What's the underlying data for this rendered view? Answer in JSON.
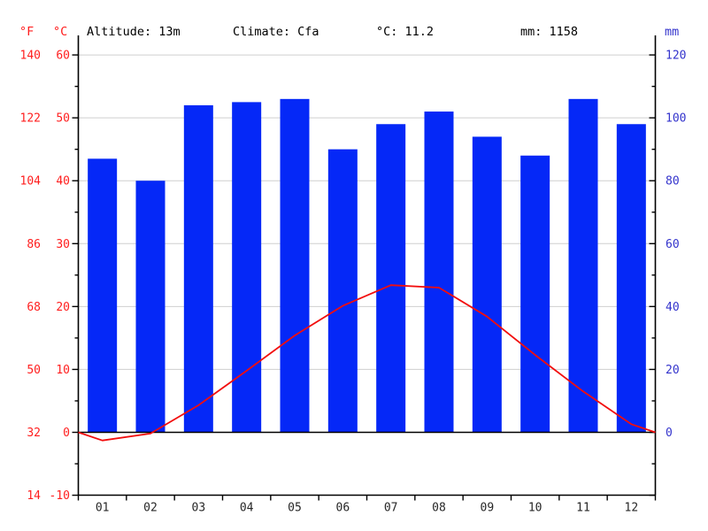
{
  "header": {
    "f_unit": "°F",
    "c_unit": "°C",
    "altitude": "Altitude: 13m",
    "climate": "Climate: Cfa",
    "mean_temp": "°C: 11.2",
    "annual_precip": "mm: 1158",
    "mm_unit": "mm"
  },
  "colors": {
    "temp_label": "#ff1e1e",
    "temp_line": "#f20d0d",
    "precip_label": "#3333cc",
    "bar": "#0528f7",
    "grid": "#cfcfcf",
    "axis": "#000000",
    "month_label": "#262626"
  },
  "chart_data": {
    "type": "bar",
    "subtype": "climate-chart-precip-bars-with-temperature-line",
    "title": "",
    "categories": [
      "01",
      "02",
      "03",
      "04",
      "05",
      "06",
      "07",
      "08",
      "09",
      "10",
      "11",
      "12"
    ],
    "series": [
      {
        "name": "Precipitation (mm)",
        "type": "bar",
        "values": [
          87,
          80,
          104,
          105,
          106,
          90,
          98,
          102,
          94,
          88,
          106,
          98
        ]
      },
      {
        "name": "Temperature (°C)",
        "type": "line",
        "values": [
          -1.3,
          -0.2,
          4.3,
          9.8,
          15.4,
          20.1,
          23.4,
          23.0,
          18.4,
          12.3,
          6.5,
          1.3
        ]
      }
    ],
    "left_axis_f_ticks": [
      140,
      122,
      104,
      86,
      68,
      50,
      32,
      14
    ],
    "left_axis_c_ticks": [
      60,
      50,
      40,
      30,
      20,
      10,
      0,
      -10
    ],
    "right_axis_mm_ticks": [
      120,
      100,
      80,
      60,
      40,
      20,
      0
    ],
    "c_axis_range": [
      -10,
      60
    ],
    "mm_axis_range": [
      -20,
      120
    ],
    "grid": true,
    "legend": "none",
    "annual_mean_c": 11.2,
    "annual_precip_mm": 1158
  }
}
